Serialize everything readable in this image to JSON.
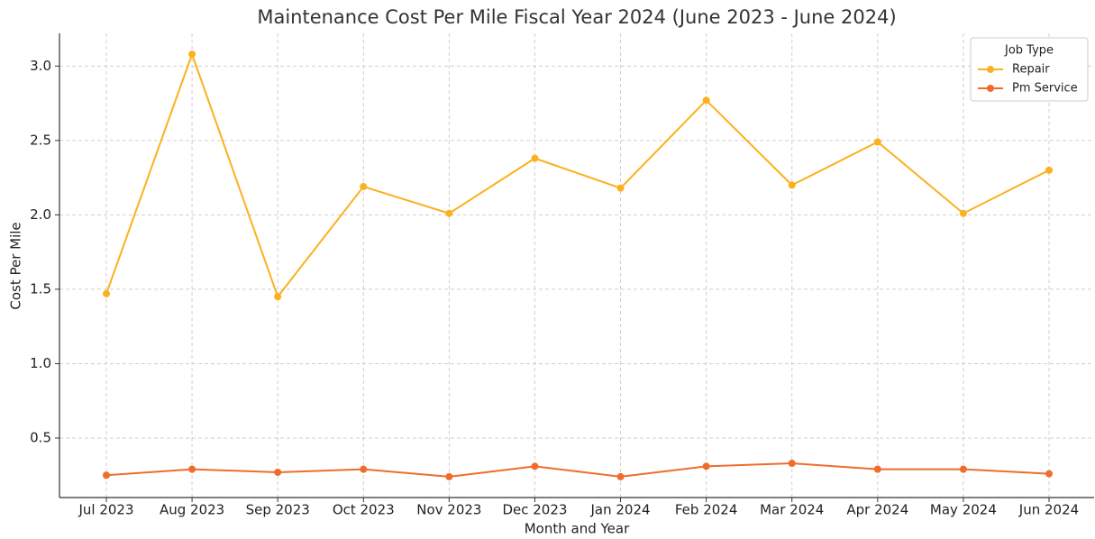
{
  "chart_data": {
    "type": "line",
    "title": "Maintenance Cost Per Mile Fiscal Year 2024 (June 2023 - June 2024)",
    "x_label": "Month and Year",
    "y_label": "Cost Per Mile",
    "categories": [
      "Jul 2023",
      "Aug 2023",
      "Sep 2023",
      "Oct 2023",
      "Nov 2023",
      "Dec 2023",
      "Jan 2024",
      "Feb 2024",
      "Mar 2024",
      "Apr 2024",
      "May 2024",
      "Jun 2024"
    ],
    "series": [
      {
        "name": "Repair",
        "color": "#fbb11e",
        "values": [
          1.47,
          3.08,
          1.45,
          2.19,
          2.01,
          2.38,
          2.18,
          2.77,
          2.2,
          2.49,
          2.01,
          2.3
        ]
      },
      {
        "name": "Pm Service",
        "color": "#ef6c2b",
        "values": [
          0.25,
          0.29,
          0.27,
          0.29,
          0.24,
          0.31,
          0.24,
          0.31,
          0.33,
          0.29,
          0.29,
          0.26
        ]
      }
    ],
    "ylim": [
      0.1,
      3.22
    ],
    "yticks": [
      0.5,
      {
        "value": 1,
        "label": "1.0"
      },
      1.5,
      {
        "value": 2,
        "label": "2.0"
      },
      2.5,
      {
        "value": 3,
        "label": "3.0"
      }
    ],
    "grid": true,
    "legend_title": "Job Type",
    "legend_position": "upper right"
  }
}
